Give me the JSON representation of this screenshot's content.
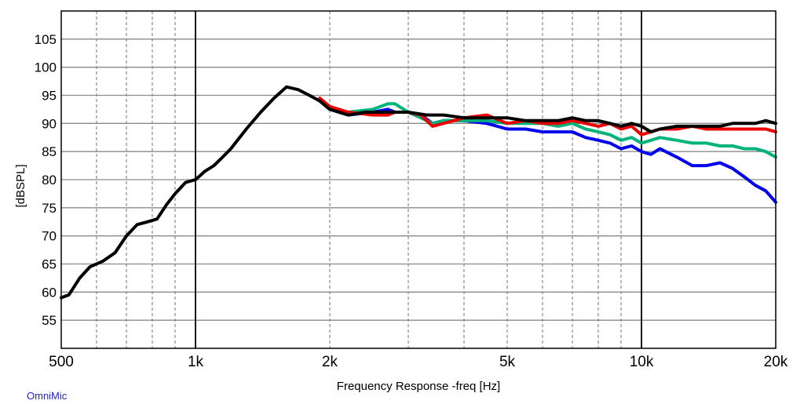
{
  "chart_data": {
    "type": "line",
    "xlabel": "Frequency Response -freq [Hz]",
    "ylabel": "[dBSPL]",
    "xscale": "log",
    "xlim": [
      500,
      20000
    ],
    "ylim": [
      50,
      110
    ],
    "grid": true,
    "x_ticks": [
      {
        "value": 500,
        "label": "500"
      },
      {
        "value": 1000,
        "label": "1k"
      },
      {
        "value": 2000,
        "label": "2k"
      },
      {
        "value": 5000,
        "label": "5k"
      },
      {
        "value": 10000,
        "label": "10k"
      },
      {
        "value": 20000,
        "label": "20k"
      }
    ],
    "y_ticks": [
      55,
      60,
      65,
      70,
      75,
      80,
      85,
      90,
      95,
      100,
      105
    ],
    "series": [
      {
        "color": "#0000ee",
        "x": [
          1900,
          2000,
          2200,
          2500,
          2700,
          2800,
          3000,
          3200,
          3400,
          3600,
          4000,
          4500,
          5000,
          5500,
          6000,
          6500,
          7000,
          7500,
          8000,
          8500,
          9000,
          9500,
          10000,
          10500,
          11000,
          12000,
          13000,
          14000,
          15000,
          16000,
          17000,
          18000,
          19000,
          20000
        ],
        "y": [
          94,
          92.5,
          91.5,
          92,
          92.5,
          92,
          92,
          91.5,
          90,
          90.5,
          90.5,
          90,
          89,
          89,
          88.5,
          88.5,
          88.5,
          87.5,
          87,
          86.5,
          85.5,
          86,
          85,
          84.5,
          85.5,
          84,
          82.5,
          82.5,
          83,
          82,
          80.5,
          79,
          78,
          76
        ]
      },
      {
        "color": "#00b37a",
        "x": [
          1900,
          2000,
          2200,
          2500,
          2700,
          2800,
          3000,
          3200,
          3400,
          3600,
          4000,
          4500,
          5000,
          5500,
          6000,
          6500,
          7000,
          7500,
          8000,
          8500,
          9000,
          9500,
          10000,
          10500,
          11000,
          12000,
          13000,
          14000,
          15000,
          16000,
          17000,
          18000,
          19000,
          20000
        ],
        "y": [
          94,
          92.5,
          92,
          92.5,
          93.5,
          93.5,
          92,
          91,
          90,
          90.5,
          90.5,
          90.5,
          90,
          90,
          90,
          89.5,
          90,
          89,
          88.5,
          88,
          87,
          87.5,
          86.5,
          87,
          87.5,
          87,
          86.5,
          86.5,
          86,
          86,
          85.5,
          85.5,
          85,
          84
        ]
      },
      {
        "color": "#ee0000",
        "x": [
          1900,
          2000,
          2200,
          2500,
          2700,
          2800,
          3000,
          3200,
          3400,
          3600,
          4000,
          4500,
          5000,
          5500,
          6000,
          6500,
          7000,
          7500,
          8000,
          8500,
          9000,
          9500,
          10000,
          10500,
          11000,
          12000,
          13000,
          14000,
          15000,
          16000,
          17000,
          18000,
          19000,
          20000
        ],
        "y": [
          94.5,
          93,
          92,
          91.5,
          91.5,
          92,
          92,
          91.5,
          89.5,
          90,
          91,
          91.5,
          90,
          90.5,
          90,
          90,
          90.5,
          90,
          89.5,
          90,
          89,
          89.5,
          88,
          88.5,
          89,
          89,
          89.5,
          89,
          89,
          89,
          89,
          89,
          89,
          88.5
        ]
      },
      {
        "color": "#000000",
        "x": [
          500,
          520,
          550,
          580,
          620,
          660,
          700,
          740,
          780,
          820,
          860,
          900,
          950,
          1000,
          1050,
          1100,
          1150,
          1200,
          1300,
          1400,
          1500,
          1600,
          1700,
          1800,
          1900,
          2000,
          2200,
          2400,
          2600,
          2800,
          3000,
          3300,
          3600,
          4000,
          4500,
          5000,
          5500,
          6000,
          6500,
          7000,
          7500,
          8000,
          8500,
          9000,
          9500,
          10000,
          10500,
          11000,
          12000,
          13000,
          14000,
          15000,
          16000,
          17000,
          18000,
          19000,
          20000
        ],
        "y": [
          59,
          59.5,
          62.5,
          64.5,
          65.5,
          67,
          70,
          72,
          72.5,
          73,
          75.5,
          77.5,
          79.5,
          80,
          81.5,
          82.5,
          84,
          85.5,
          89,
          92,
          94.5,
          96.5,
          96,
          95,
          94,
          92.5,
          91.5,
          92,
          92,
          92,
          92,
          91.5,
          91.5,
          91,
          91,
          91,
          90.5,
          90.5,
          90.5,
          91,
          90.5,
          90.5,
          90,
          89.5,
          90,
          89.5,
          88.5,
          89,
          89.5,
          89.5,
          89.5,
          89.5,
          90,
          90,
          90,
          90.5,
          90
        ]
      }
    ]
  },
  "watermark": "OmniMic"
}
